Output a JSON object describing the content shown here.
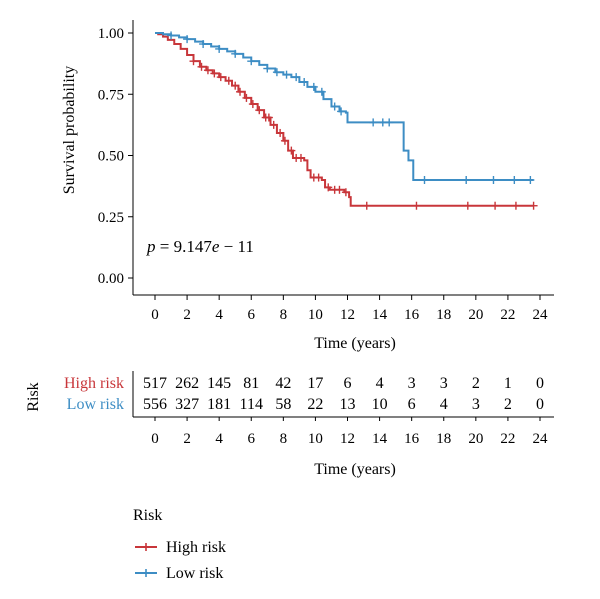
{
  "chart_data": {
    "type": "line",
    "subtype": "kaplan-meier",
    "title": "",
    "xlabel": "Time (years)",
    "ylabel": "Survival probability",
    "xlim": [
      -1,
      25
    ],
    "ylim": [
      0,
      1.03
    ],
    "x_ticks": [
      0,
      2,
      4,
      6,
      8,
      10,
      12,
      14,
      16,
      18,
      20,
      22,
      24
    ],
    "y_ticks": [
      "0.00",
      "0.25",
      "0.50",
      "0.75",
      "1.00"
    ],
    "grid": false,
    "annotation": {
      "p_label": "p",
      "p_rest": " = 9.147",
      "p_e": "e",
      "p_exp": " − 11"
    },
    "series": [
      {
        "name": "High risk",
        "color": "#c8363a",
        "points": [
          [
            0,
            1.0
          ],
          [
            0.2,
            0.995
          ],
          [
            0.5,
            0.985
          ],
          [
            0.8,
            0.972
          ],
          [
            1.2,
            0.955
          ],
          [
            1.6,
            0.935
          ],
          [
            2.0,
            0.91
          ],
          [
            2.4,
            0.885
          ],
          [
            2.8,
            0.862
          ],
          [
            3.2,
            0.848
          ],
          [
            3.6,
            0.835
          ],
          [
            4.0,
            0.82
          ],
          [
            4.4,
            0.805
          ],
          [
            4.8,
            0.785
          ],
          [
            5.2,
            0.76
          ],
          [
            5.6,
            0.735
          ],
          [
            6.0,
            0.71
          ],
          [
            6.4,
            0.685
          ],
          [
            6.8,
            0.655
          ],
          [
            7.2,
            0.625
          ],
          [
            7.6,
            0.592
          ],
          [
            8.0,
            0.56
          ],
          [
            8.3,
            0.52
          ],
          [
            8.6,
            0.49
          ],
          [
            9.3,
            0.48
          ],
          [
            9.5,
            0.44
          ],
          [
            9.7,
            0.41
          ],
          [
            10.4,
            0.4
          ],
          [
            10.6,
            0.37
          ],
          [
            10.9,
            0.36
          ],
          [
            11.8,
            0.35
          ],
          [
            12.1,
            0.33
          ],
          [
            12.2,
            0.295
          ],
          [
            23.6,
            0.295
          ]
        ],
        "censor_x": [
          2.4,
          2.9,
          3.3,
          3.7,
          4.1,
          4.6,
          5.0,
          5.3,
          5.7,
          6.1,
          6.5,
          6.9,
          7.1,
          7.4,
          7.8,
          8.1,
          8.5,
          8.8,
          9.1,
          9.9,
          10.2,
          10.8,
          11.2,
          11.5,
          11.9,
          13.2,
          16.3,
          19.5,
          21.2,
          22.5,
          23.6
        ]
      },
      {
        "name": "Low risk",
        "color": "#3d8dc4",
        "points": [
          [
            0,
            1.0
          ],
          [
            0.5,
            0.995
          ],
          [
            1.0,
            0.99
          ],
          [
            1.5,
            0.982
          ],
          [
            2.0,
            0.975
          ],
          [
            2.5,
            0.965
          ],
          [
            3.0,
            0.955
          ],
          [
            3.5,
            0.945
          ],
          [
            4.0,
            0.935
          ],
          [
            4.5,
            0.925
          ],
          [
            5.0,
            0.915
          ],
          [
            5.5,
            0.9
          ],
          [
            6.0,
            0.885
          ],
          [
            6.5,
            0.87
          ],
          [
            7.0,
            0.855
          ],
          [
            7.5,
            0.84
          ],
          [
            8.0,
            0.83
          ],
          [
            8.5,
            0.82
          ],
          [
            9.0,
            0.8
          ],
          [
            9.5,
            0.78
          ],
          [
            10.0,
            0.76
          ],
          [
            10.5,
            0.73
          ],
          [
            11.0,
            0.7
          ],
          [
            11.5,
            0.68
          ],
          [
            11.9,
            0.675
          ],
          [
            12.0,
            0.635
          ],
          [
            15.3,
            0.635
          ],
          [
            15.5,
            0.52
          ],
          [
            15.8,
            0.48
          ],
          [
            16.1,
            0.4
          ],
          [
            23.6,
            0.4
          ]
        ],
        "censor_x": [
          1.0,
          2.0,
          3.0,
          4.0,
          5.0,
          6.0,
          7.0,
          7.6,
          8.2,
          8.8,
          9.3,
          9.9,
          10.4,
          11.2,
          11.6,
          13.6,
          14.2,
          14.6,
          16.8,
          19.4,
          21.1,
          22.4,
          23.4
        ]
      }
    ],
    "risk_table": {
      "title": "Risk",
      "xlabel": "Time (years)",
      "x_ticks": [
        0,
        2,
        4,
        6,
        8,
        10,
        12,
        14,
        16,
        18,
        20,
        22,
        24
      ],
      "rows": [
        {
          "name": "High risk",
          "color": "#c8363a",
          "values": [
            "517",
            "262",
            "145",
            "81",
            "42",
            "17",
            "6",
            "4",
            "3",
            "3",
            "2",
            "1",
            "0"
          ]
        },
        {
          "name": "Low risk",
          "color": "#3d8dc4",
          "values": [
            "556",
            "327",
            "181",
            "114",
            "58",
            "22",
            "13",
            "10",
            "6",
            "4",
            "3",
            "2",
            "0"
          ]
        }
      ]
    },
    "legend": {
      "title": "Risk",
      "placement": "bottom-left",
      "entries": [
        "High risk",
        "Low risk"
      ]
    }
  }
}
